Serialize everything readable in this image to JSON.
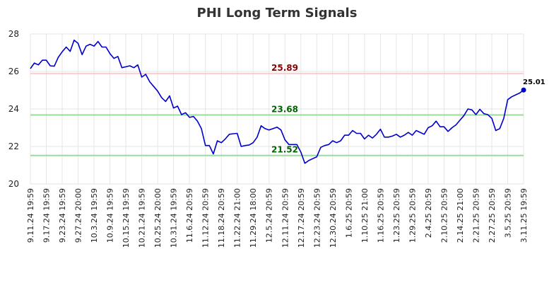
{
  "chart_data": {
    "type": "line",
    "title": "PHI Long Term Signals",
    "xlabel": "",
    "ylabel": "",
    "ylim": [
      20,
      28
    ],
    "y_ticks": [
      20,
      22,
      24,
      26,
      28
    ],
    "grid": true,
    "x_tick_labels": [
      "9.11.24 19:59",
      "9.17.24 19:59",
      "9.23.24 19:59",
      "9.27.24 20:00",
      "10.3.24 19:59",
      "10.9.24 19:59",
      "10.15.24 19:59",
      "10.21.24 19:59",
      "10.25.24 20:00",
      "10.31.24 19:59",
      "11.6.24 20:59",
      "11.12.24 20:59",
      "11.18.24 20:59",
      "11.22.24 21:00",
      "11.29.24 18:00",
      "12.5.24 20:59",
      "12.11.24 20:59",
      "12.17.24 20:59",
      "12.23.24 20:59",
      "12.30.24 20:59",
      "1.6.25 20:59",
      "1.10.25 21:00",
      "1.16.25 20:59",
      "1.23.25 20:59",
      "1.29.25 20:59",
      "2.4.25 20:59",
      "2.10.25 20:59",
      "2.14.25 21:00",
      "2.21.25 20:59",
      "2.27.25 20:59",
      "3.5.25 20:59",
      "3.11.25 19:59"
    ],
    "series": [
      {
        "color": "#0000cc",
        "values": [
          26.15,
          26.45,
          26.35,
          26.6,
          26.6,
          26.3,
          26.28,
          26.75,
          27.05,
          27.3,
          27.07,
          27.67,
          27.5,
          26.9,
          27.35,
          27.45,
          27.35,
          27.6,
          27.3,
          27.3,
          26.95,
          26.7,
          26.8,
          26.2,
          26.25,
          26.3,
          26.2,
          26.35,
          25.7,
          25.85,
          25.45,
          25.2,
          24.95,
          24.6,
          24.4,
          24.7,
          24.05,
          24.15,
          23.7,
          23.8,
          23.55,
          23.6,
          23.35,
          22.95,
          22.05,
          22.05,
          21.6,
          22.3,
          22.2,
          22.4,
          22.65,
          22.68,
          22.7,
          22.0,
          22.05,
          22.08,
          22.2,
          22.5,
          23.1,
          22.95,
          22.88,
          22.95,
          23.03,
          22.88,
          22.35,
          22.1,
          22.1,
          22.1,
          21.7,
          21.1,
          21.25,
          21.35,
          21.45,
          21.95,
          22.05,
          22.1,
          22.3,
          22.2,
          22.3,
          22.6,
          22.6,
          22.85,
          22.7,
          22.7,
          22.4,
          22.6,
          22.45,
          22.65,
          22.92,
          22.5,
          22.5,
          22.55,
          22.65,
          22.5,
          22.6,
          22.75,
          22.6,
          22.85,
          22.75,
          22.65,
          23.0,
          23.1,
          23.35,
          23.05,
          23.05,
          22.8,
          23.0,
          23.15,
          23.4,
          23.65,
          24.0,
          23.95,
          23.7,
          23.98,
          23.75,
          23.7,
          23.5,
          22.85,
          22.95,
          23.5,
          24.5,
          24.65,
          24.75,
          24.85,
          25.01
        ]
      }
    ],
    "levels": [
      {
        "value": 25.89,
        "label": "25.89",
        "color": "#ffcccc",
        "text_color": "#8b0000"
      },
      {
        "value": 23.68,
        "label": "23.68",
        "color": "#99dd99",
        "text_color": "#006400"
      },
      {
        "value": 21.52,
        "label": "21.52",
        "color": "#99dd99",
        "text_color": "#006400"
      }
    ],
    "last_value_label": "25.01",
    "last_value_marker_color": "#0000cc"
  }
}
